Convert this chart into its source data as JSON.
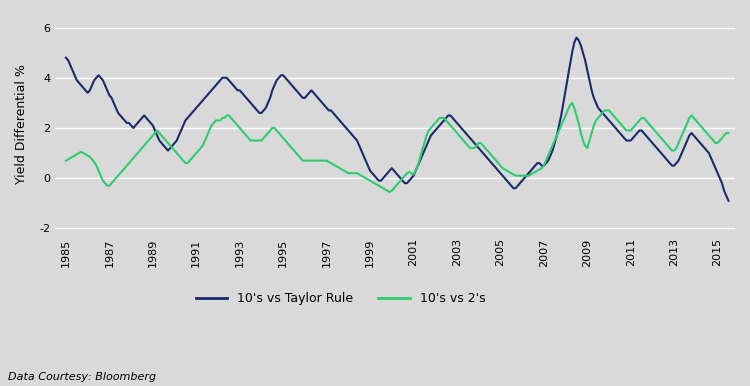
{
  "title": "",
  "ylabel": "Yield Differential %",
  "xlabel": "",
  "background_color": "#d9d9d9",
  "plot_bg_color": "#d9d9d9",
  "line1_color": "#1a2a6c",
  "line2_color": "#2ecc71",
  "legend_label1": "10's vs Taylor Rule",
  "legend_label2": "10's vs 2's",
  "data_source": "Data Courtesy: Bloomberg",
  "yticks": [
    -2,
    0,
    2,
    4,
    6
  ],
  "ylim": [
    -2.2,
    6.5
  ],
  "xlim": [
    1984.5,
    2015.8
  ],
  "xtick_years": [
    1985,
    1987,
    1989,
    1991,
    1993,
    1995,
    1997,
    1999,
    2001,
    2003,
    2005,
    2007,
    2009,
    2011,
    2013,
    2015
  ],
  "taylor_rule": {
    "years": [
      1985.0,
      1985.1,
      1985.2,
      1985.3,
      1985.4,
      1985.5,
      1985.6,
      1985.7,
      1985.8,
      1985.9,
      1986.0,
      1986.1,
      1986.2,
      1986.3,
      1986.4,
      1986.5,
      1986.6,
      1986.7,
      1986.8,
      1986.9,
      1987.0,
      1987.1,
      1987.2,
      1987.3,
      1987.4,
      1987.5,
      1987.6,
      1987.7,
      1987.8,
      1987.9,
      1988.0,
      1988.1,
      1988.2,
      1988.3,
      1988.4,
      1988.5,
      1988.6,
      1988.7,
      1988.8,
      1988.9,
      1989.0,
      1989.1,
      1989.2,
      1989.3,
      1989.4,
      1989.5,
      1989.6,
      1989.7,
      1989.8,
      1989.9,
      1990.0,
      1990.1,
      1990.2,
      1990.3,
      1990.4,
      1990.5,
      1990.6,
      1990.7,
      1990.8,
      1990.9,
      1991.0,
      1991.1,
      1991.2,
      1991.3,
      1991.4,
      1991.5,
      1991.6,
      1991.7,
      1991.8,
      1991.9,
      1992.0,
      1992.1,
      1992.2,
      1992.3,
      1992.4,
      1992.5,
      1992.6,
      1992.7,
      1992.8,
      1992.9,
      1993.0,
      1993.1,
      1993.2,
      1993.3,
      1993.4,
      1993.5,
      1993.6,
      1993.7,
      1993.8,
      1993.9,
      1994.0,
      1994.1,
      1994.2,
      1994.3,
      1994.4,
      1994.5,
      1994.6,
      1994.7,
      1994.8,
      1994.9,
      1995.0,
      1995.1,
      1995.2,
      1995.3,
      1995.4,
      1995.5,
      1995.6,
      1995.7,
      1995.8,
      1995.9,
      1996.0,
      1996.1,
      1996.2,
      1996.3,
      1996.4,
      1996.5,
      1996.6,
      1996.7,
      1996.8,
      1996.9,
      1997.0,
      1997.1,
      1997.2,
      1997.3,
      1997.4,
      1997.5,
      1997.6,
      1997.7,
      1997.8,
      1997.9,
      1998.0,
      1998.1,
      1998.2,
      1998.3,
      1998.4,
      1998.5,
      1998.6,
      1998.7,
      1998.8,
      1998.9,
      1999.0,
      1999.1,
      1999.2,
      1999.3,
      1999.4,
      1999.5,
      1999.6,
      1999.7,
      1999.8,
      1999.9,
      2000.0,
      2000.1,
      2000.2,
      2000.3,
      2000.4,
      2000.5,
      2000.6,
      2000.7,
      2000.8,
      2000.9,
      2001.0,
      2001.1,
      2001.2,
      2001.3,
      2001.4,
      2001.5,
      2001.6,
      2001.7,
      2001.8,
      2001.9,
      2002.0,
      2002.1,
      2002.2,
      2002.3,
      2002.4,
      2002.5,
      2002.6,
      2002.7,
      2002.8,
      2002.9,
      2003.0,
      2003.1,
      2003.2,
      2003.3,
      2003.4,
      2003.5,
      2003.6,
      2003.7,
      2003.8,
      2003.9,
      2004.0,
      2004.1,
      2004.2,
      2004.3,
      2004.4,
      2004.5,
      2004.6,
      2004.7,
      2004.8,
      2004.9,
      2005.0,
      2005.1,
      2005.2,
      2005.3,
      2005.4,
      2005.5,
      2005.6,
      2005.7,
      2005.8,
      2005.9,
      2006.0,
      2006.1,
      2006.2,
      2006.3,
      2006.4,
      2006.5,
      2006.6,
      2006.7,
      2006.8,
      2006.9,
      2007.0,
      2007.1,
      2007.2,
      2007.3,
      2007.4,
      2007.5,
      2007.6,
      2007.7,
      2007.8,
      2007.9,
      2008.0,
      2008.1,
      2008.2,
      2008.3,
      2008.4,
      2008.5,
      2008.6,
      2008.7,
      2008.8,
      2008.9,
      2009.0,
      2009.1,
      2009.2,
      2009.3,
      2009.4,
      2009.5,
      2009.6,
      2009.7,
      2009.8,
      2009.9,
      2010.0,
      2010.1,
      2010.2,
      2010.3,
      2010.4,
      2010.5,
      2010.6,
      2010.7,
      2010.8,
      2010.9,
      2011.0,
      2011.1,
      2011.2,
      2011.3,
      2011.4,
      2011.5,
      2011.6,
      2011.7,
      2011.8,
      2011.9,
      2012.0,
      2012.1,
      2012.2,
      2012.3,
      2012.4,
      2012.5,
      2012.6,
      2012.7,
      2012.8,
      2012.9,
      2013.0,
      2013.1,
      2013.2,
      2013.3,
      2013.4,
      2013.5,
      2013.6,
      2013.7,
      2013.8,
      2013.9,
      2014.0,
      2014.1,
      2014.2,
      2014.3,
      2014.4,
      2014.5,
      2014.6,
      2014.7,
      2014.8,
      2014.9,
      2015.0,
      2015.1,
      2015.2,
      2015.3,
      2015.4,
      2015.5
    ],
    "values": [
      4.8,
      4.7,
      4.5,
      4.3,
      4.1,
      3.9,
      3.8,
      3.7,
      3.6,
      3.5,
      3.4,
      3.5,
      3.7,
      3.9,
      4.0,
      4.1,
      4.0,
      3.9,
      3.7,
      3.5,
      3.3,
      3.2,
      3.0,
      2.8,
      2.6,
      2.5,
      2.4,
      2.3,
      2.2,
      2.2,
      2.1,
      2.0,
      2.1,
      2.2,
      2.3,
      2.4,
      2.5,
      2.4,
      2.3,
      2.2,
      2.1,
      1.9,
      1.7,
      1.5,
      1.4,
      1.3,
      1.2,
      1.1,
      1.2,
      1.3,
      1.4,
      1.5,
      1.7,
      1.9,
      2.1,
      2.3,
      2.4,
      2.5,
      2.6,
      2.7,
      2.8,
      2.9,
      3.0,
      3.1,
      3.2,
      3.3,
      3.4,
      3.5,
      3.6,
      3.7,
      3.8,
      3.9,
      4.0,
      4.0,
      4.0,
      3.9,
      3.8,
      3.7,
      3.6,
      3.5,
      3.5,
      3.4,
      3.3,
      3.2,
      3.1,
      3.0,
      2.9,
      2.8,
      2.7,
      2.6,
      2.6,
      2.7,
      2.8,
      3.0,
      3.2,
      3.5,
      3.7,
      3.9,
      4.0,
      4.1,
      4.1,
      4.0,
      3.9,
      3.8,
      3.7,
      3.6,
      3.5,
      3.4,
      3.3,
      3.2,
      3.2,
      3.3,
      3.4,
      3.5,
      3.4,
      3.3,
      3.2,
      3.1,
      3.0,
      2.9,
      2.8,
      2.7,
      2.7,
      2.6,
      2.5,
      2.4,
      2.3,
      2.2,
      2.1,
      2.0,
      1.9,
      1.8,
      1.7,
      1.6,
      1.5,
      1.3,
      1.1,
      0.9,
      0.7,
      0.5,
      0.3,
      0.2,
      0.1,
      0.0,
      -0.1,
      -0.1,
      0.0,
      0.1,
      0.2,
      0.3,
      0.4,
      0.3,
      0.2,
      0.1,
      0.0,
      -0.1,
      -0.2,
      -0.2,
      -0.1,
      0.0,
      0.1,
      0.3,
      0.5,
      0.7,
      0.9,
      1.1,
      1.3,
      1.5,
      1.7,
      1.8,
      1.9,
      2.0,
      2.1,
      2.2,
      2.3,
      2.4,
      2.5,
      2.5,
      2.4,
      2.3,
      2.2,
      2.1,
      2.0,
      1.9,
      1.8,
      1.7,
      1.6,
      1.5,
      1.4,
      1.3,
      1.2,
      1.1,
      1.0,
      0.9,
      0.8,
      0.7,
      0.6,
      0.5,
      0.4,
      0.3,
      0.2,
      0.1,
      0.0,
      -0.1,
      -0.2,
      -0.3,
      -0.4,
      -0.4,
      -0.3,
      -0.2,
      -0.1,
      0.0,
      0.1,
      0.2,
      0.3,
      0.4,
      0.5,
      0.6,
      0.6,
      0.5,
      0.5,
      0.6,
      0.7,
      0.9,
      1.1,
      1.4,
      1.7,
      2.1,
      2.5,
      3.0,
      3.5,
      4.0,
      4.5,
      5.0,
      5.4,
      5.6,
      5.5,
      5.3,
      5.0,
      4.7,
      4.3,
      3.9,
      3.5,
      3.2,
      3.0,
      2.8,
      2.7,
      2.6,
      2.5,
      2.4,
      2.3,
      2.2,
      2.1,
      2.0,
      1.9,
      1.8,
      1.7,
      1.6,
      1.5,
      1.5,
      1.5,
      1.6,
      1.7,
      1.8,
      1.9,
      1.9,
      1.8,
      1.7,
      1.6,
      1.5,
      1.4,
      1.3,
      1.2,
      1.1,
      1.0,
      0.9,
      0.8,
      0.7,
      0.6,
      0.5,
      0.5,
      0.6,
      0.7,
      0.9,
      1.1,
      1.3,
      1.5,
      1.7,
      1.8,
      1.7,
      1.6,
      1.5,
      1.4,
      1.3,
      1.2,
      1.1,
      1.0,
      0.8,
      0.6,
      0.4,
      0.2,
      0.0,
      -0.2,
      -0.5,
      -0.7,
      -0.9
    ]
  },
  "twos": {
    "years": [
      1985.0,
      1985.1,
      1985.2,
      1985.3,
      1985.4,
      1985.5,
      1985.6,
      1985.7,
      1985.8,
      1985.9,
      1986.0,
      1986.1,
      1986.2,
      1986.3,
      1986.4,
      1986.5,
      1986.6,
      1986.7,
      1986.8,
      1986.9,
      1987.0,
      1987.1,
      1987.2,
      1987.3,
      1987.4,
      1987.5,
      1987.6,
      1987.7,
      1987.8,
      1987.9,
      1988.0,
      1988.1,
      1988.2,
      1988.3,
      1988.4,
      1988.5,
      1988.6,
      1988.7,
      1988.8,
      1988.9,
      1989.0,
      1989.1,
      1989.2,
      1989.3,
      1989.4,
      1989.5,
      1989.6,
      1989.7,
      1989.8,
      1989.9,
      1990.0,
      1990.1,
      1990.2,
      1990.3,
      1990.4,
      1990.5,
      1990.6,
      1990.7,
      1990.8,
      1990.9,
      1991.0,
      1991.1,
      1991.2,
      1991.3,
      1991.4,
      1991.5,
      1991.6,
      1991.7,
      1991.8,
      1991.9,
      1992.0,
      1992.1,
      1992.2,
      1992.3,
      1992.4,
      1992.5,
      1992.6,
      1992.7,
      1992.8,
      1992.9,
      1993.0,
      1993.1,
      1993.2,
      1993.3,
      1993.4,
      1993.5,
      1993.6,
      1993.7,
      1993.8,
      1993.9,
      1994.0,
      1994.1,
      1994.2,
      1994.3,
      1994.4,
      1994.5,
      1994.6,
      1994.7,
      1994.8,
      1994.9,
      1995.0,
      1995.1,
      1995.2,
      1995.3,
      1995.4,
      1995.5,
      1995.6,
      1995.7,
      1995.8,
      1995.9,
      1996.0,
      1996.1,
      1996.2,
      1996.3,
      1996.4,
      1996.5,
      1996.6,
      1996.7,
      1996.8,
      1996.9,
      1997.0,
      1997.1,
      1997.2,
      1997.3,
      1997.4,
      1997.5,
      1997.6,
      1997.7,
      1997.8,
      1997.9,
      1998.0,
      1998.1,
      1998.2,
      1998.3,
      1998.4,
      1998.5,
      1998.6,
      1998.7,
      1998.8,
      1998.9,
      1999.0,
      1999.1,
      1999.2,
      1999.3,
      1999.4,
      1999.5,
      1999.6,
      1999.7,
      1999.8,
      1999.9,
      2000.0,
      2000.1,
      2000.2,
      2000.3,
      2000.4,
      2000.5,
      2000.6,
      2000.7,
      2000.8,
      2000.9,
      2001.0,
      2001.1,
      2001.2,
      2001.3,
      2001.4,
      2001.5,
      2001.6,
      2001.7,
      2001.8,
      2001.9,
      2002.0,
      2002.1,
      2002.2,
      2002.3,
      2002.4,
      2002.5,
      2002.6,
      2002.7,
      2002.8,
      2002.9,
      2003.0,
      2003.1,
      2003.2,
      2003.3,
      2003.4,
      2003.5,
      2003.6,
      2003.7,
      2003.8,
      2003.9,
      2004.0,
      2004.1,
      2004.2,
      2004.3,
      2004.4,
      2004.5,
      2004.6,
      2004.7,
      2004.8,
      2004.9,
      2005.0,
      2005.1,
      2005.2,
      2005.3,
      2005.4,
      2005.5,
      2005.6,
      2005.7,
      2005.8,
      2005.9,
      2006.0,
      2006.1,
      2006.2,
      2006.3,
      2006.4,
      2006.5,
      2006.6,
      2006.7,
      2006.8,
      2006.9,
      2007.0,
      2007.1,
      2007.2,
      2007.3,
      2007.4,
      2007.5,
      2007.6,
      2007.7,
      2007.8,
      2007.9,
      2008.0,
      2008.1,
      2008.2,
      2008.3,
      2008.4,
      2008.5,
      2008.6,
      2008.7,
      2008.8,
      2008.9,
      2009.0,
      2009.1,
      2009.2,
      2009.3,
      2009.4,
      2009.5,
      2009.6,
      2009.7,
      2009.8,
      2009.9,
      2010.0,
      2010.1,
      2010.2,
      2010.3,
      2010.4,
      2010.5,
      2010.6,
      2010.7,
      2010.8,
      2010.9,
      2011.0,
      2011.1,
      2011.2,
      2011.3,
      2011.4,
      2011.5,
      2011.6,
      2011.7,
      2011.8,
      2011.9,
      2012.0,
      2012.1,
      2012.2,
      2012.3,
      2012.4,
      2012.5,
      2012.6,
      2012.7,
      2012.8,
      2012.9,
      2013.0,
      2013.1,
      2013.2,
      2013.3,
      2013.4,
      2013.5,
      2013.6,
      2013.7,
      2013.8,
      2013.9,
      2014.0,
      2014.1,
      2014.2,
      2014.3,
      2014.4,
      2014.5,
      2014.6,
      2014.7,
      2014.8,
      2014.9,
      2015.0,
      2015.1,
      2015.2,
      2015.3,
      2015.4,
      2015.5
    ],
    "values": [
      0.7,
      0.75,
      0.8,
      0.85,
      0.9,
      0.95,
      1.0,
      1.05,
      1.0,
      0.95,
      0.9,
      0.85,
      0.75,
      0.65,
      0.5,
      0.3,
      0.1,
      -0.1,
      -0.2,
      -0.3,
      -0.3,
      -0.2,
      -0.1,
      0.0,
      0.1,
      0.2,
      0.3,
      0.4,
      0.5,
      0.6,
      0.7,
      0.8,
      0.9,
      1.0,
      1.1,
      1.2,
      1.3,
      1.4,
      1.5,
      1.6,
      1.7,
      1.8,
      1.9,
      1.8,
      1.7,
      1.6,
      1.5,
      1.4,
      1.3,
      1.2,
      1.1,
      1.0,
      0.9,
      0.8,
      0.7,
      0.6,
      0.6,
      0.7,
      0.8,
      0.9,
      1.0,
      1.1,
      1.2,
      1.3,
      1.5,
      1.7,
      1.9,
      2.1,
      2.2,
      2.3,
      2.3,
      2.3,
      2.4,
      2.4,
      2.5,
      2.5,
      2.4,
      2.3,
      2.2,
      2.1,
      2.0,
      1.9,
      1.8,
      1.7,
      1.6,
      1.5,
      1.5,
      1.5,
      1.5,
      1.5,
      1.5,
      1.6,
      1.7,
      1.8,
      1.9,
      2.0,
      2.0,
      1.9,
      1.8,
      1.7,
      1.6,
      1.5,
      1.4,
      1.3,
      1.2,
      1.1,
      1.0,
      0.9,
      0.8,
      0.7,
      0.7,
      0.7,
      0.7,
      0.7,
      0.7,
      0.7,
      0.7,
      0.7,
      0.7,
      0.7,
      0.7,
      0.65,
      0.6,
      0.55,
      0.5,
      0.45,
      0.4,
      0.35,
      0.3,
      0.25,
      0.2,
      0.2,
      0.2,
      0.2,
      0.2,
      0.15,
      0.1,
      0.05,
      0.0,
      -0.05,
      -0.1,
      -0.15,
      -0.2,
      -0.25,
      -0.3,
      -0.35,
      -0.4,
      -0.45,
      -0.5,
      -0.55,
      -0.5,
      -0.4,
      -0.3,
      -0.2,
      -0.1,
      0.0,
      0.1,
      0.2,
      0.25,
      0.2,
      0.15,
      0.3,
      0.5,
      0.8,
      1.1,
      1.4,
      1.7,
      1.9,
      2.0,
      2.1,
      2.2,
      2.3,
      2.4,
      2.4,
      2.4,
      2.3,
      2.2,
      2.1,
      2.0,
      1.9,
      1.8,
      1.7,
      1.6,
      1.5,
      1.4,
      1.3,
      1.2,
      1.2,
      1.2,
      1.3,
      1.4,
      1.4,
      1.3,
      1.2,
      1.1,
      1.0,
      0.9,
      0.8,
      0.7,
      0.6,
      0.5,
      0.4,
      0.35,
      0.3,
      0.25,
      0.2,
      0.15,
      0.1,
      0.1,
      0.1,
      0.1,
      0.1,
      0.1,
      0.1,
      0.15,
      0.2,
      0.25,
      0.3,
      0.35,
      0.4,
      0.5,
      0.7,
      0.9,
      1.1,
      1.3,
      1.5,
      1.7,
      1.9,
      2.1,
      2.3,
      2.5,
      2.7,
      2.9,
      3.0,
      2.8,
      2.5,
      2.2,
      1.8,
      1.5,
      1.3,
      1.2,
      1.5,
      1.8,
      2.1,
      2.3,
      2.4,
      2.5,
      2.6,
      2.7,
      2.7,
      2.7,
      2.6,
      2.5,
      2.4,
      2.3,
      2.2,
      2.1,
      2.0,
      1.9,
      1.9,
      1.9,
      2.0,
      2.1,
      2.2,
      2.3,
      2.4,
      2.4,
      2.3,
      2.2,
      2.1,
      2.0,
      1.9,
      1.8,
      1.7,
      1.6,
      1.5,
      1.4,
      1.3,
      1.2,
      1.1,
      1.1,
      1.2,
      1.4,
      1.6,
      1.8,
      2.0,
      2.2,
      2.4,
      2.5,
      2.4,
      2.3,
      2.2,
      2.1,
      2.0,
      1.9,
      1.8,
      1.7,
      1.6,
      1.5,
      1.4,
      1.4,
      1.5,
      1.6,
      1.7,
      1.8,
      1.8
    ]
  }
}
